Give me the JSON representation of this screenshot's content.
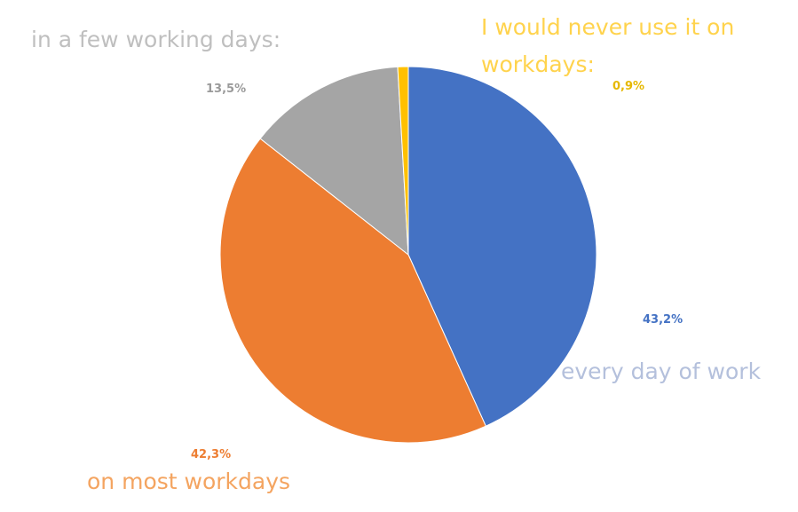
{
  "chart_data": {
    "type": "pie",
    "categories": [
      "every day of work",
      "on most workdays",
      "in a few working days:",
      "I would never use it on workdays:"
    ],
    "values": [
      43.2,
      42.3,
      13.5,
      0.9
    ],
    "value_labels": [
      "43,2%",
      "42,3%",
      "13,5%",
      "0,9%"
    ],
    "colors": [
      "#4472c4",
      "#ed7d31",
      "#a5a5a5",
      "#ffc000"
    ]
  }
}
